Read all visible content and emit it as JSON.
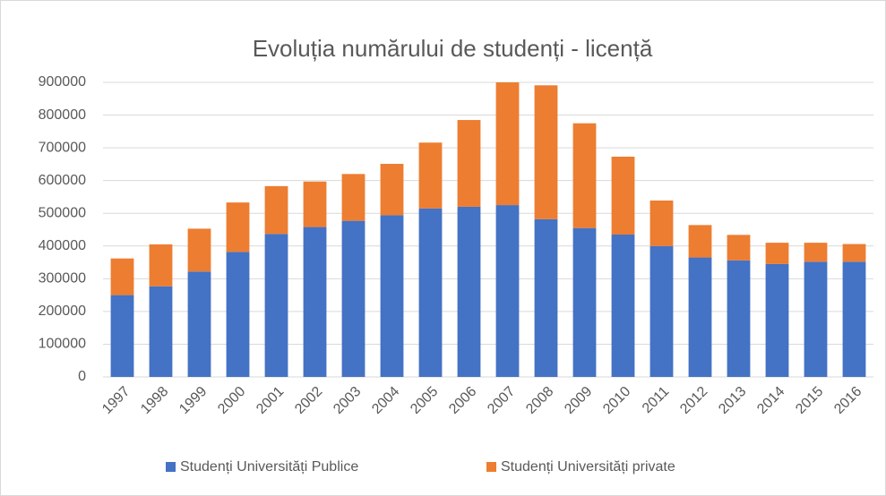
{
  "chart_data": {
    "type": "stacked_bar",
    "title": "Evoluția numărului de studenți - licență",
    "categories": [
      "1997",
      "1998",
      "1999",
      "2000",
      "2001",
      "2002",
      "2003",
      "2004",
      "2005",
      "2006",
      "2007",
      "2008",
      "2009",
      "2010",
      "2011",
      "2012",
      "2013",
      "2014",
      "2015",
      "2016"
    ],
    "series": [
      {
        "name": "Studenți Universități Publice",
        "color": "#4472c4",
        "values": [
          250000,
          277000,
          322000,
          382000,
          437000,
          458000,
          477000,
          494000,
          515000,
          520000,
          525000,
          482000,
          455000,
          435000,
          400000,
          365000,
          356000,
          345000,
          352000,
          352000
        ]
      },
      {
        "name": "Studenți Universități private",
        "color": "#ed7d31",
        "values": [
          112000,
          128000,
          131000,
          151000,
          146000,
          139000,
          143000,
          157000,
          201000,
          265000,
          375000,
          409000,
          320000,
          238000,
          139000,
          99000,
          78000,
          65000,
          58000,
          54000
        ]
      }
    ],
    "ylim": [
      0,
      900000
    ],
    "yticks": [
      0,
      100000,
      200000,
      300000,
      400000,
      500000,
      600000,
      700000,
      800000,
      900000
    ],
    "grid": true,
    "legend": "bottom"
  }
}
